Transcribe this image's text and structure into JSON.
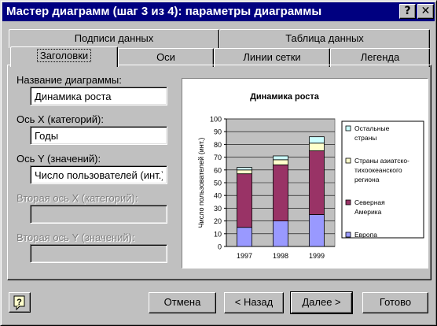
{
  "window": {
    "title": "Мастер диаграмм (шаг 3 из 4): параметры диаграммы",
    "help_glyph": "?",
    "close_glyph": "✕"
  },
  "tabs_back": [
    {
      "label": "Подписи данных"
    },
    {
      "label": "Таблица данных"
    }
  ],
  "tabs_front": [
    {
      "label": "Заголовки"
    },
    {
      "label": "Оси"
    },
    {
      "label": "Линии сетки"
    },
    {
      "label": "Легенда"
    }
  ],
  "form": {
    "chart_title_label": "Название диаграммы:",
    "chart_title_value": "Динамика роста",
    "x_axis_label": "Ось X (категорий):",
    "x_axis_value": "Годы",
    "y_axis_label": "Ось Y (значений):",
    "y_axis_value": "Число пользователей (инт.)",
    "x2_axis_label": "Вторая ось X (категорий):",
    "x2_axis_value": "",
    "y2_axis_label": "Вторая ось Y (значений):",
    "y2_axis_value": ""
  },
  "buttons": {
    "cancel": "Отмена",
    "back": "< Назад",
    "next": "Далее >",
    "finish": "Готово"
  },
  "chart_data": {
    "type": "bar",
    "stacked": true,
    "title": "Динамика роста",
    "xlabel": "Годы",
    "ylabel": "Число пользователей (инт.)",
    "categories": [
      "1997",
      "1998",
      "1999"
    ],
    "ylim": [
      0,
      100
    ],
    "yticks": [
      "0",
      "10",
      "20",
      "30",
      "40",
      "50",
      "60",
      "70",
      "80",
      "90",
      "100"
    ],
    "grid": true,
    "legend_position": "right",
    "series": [
      {
        "name": "Европа",
        "values": [
          15,
          20,
          25
        ],
        "color": "#9999ff"
      },
      {
        "name": "Северная Америка",
        "values": [
          42,
          44,
          50
        ],
        "color": "#993366"
      },
      {
        "name": "Страны азиатско-тихоокеанского региона",
        "values": [
          3,
          4,
          6
        ],
        "color": "#ffffcc"
      },
      {
        "name": "Остальные страны",
        "values": [
          2,
          3,
          5
        ],
        "color": "#ccffff"
      }
    ],
    "legend": [
      {
        "lines": [
          "Остальные",
          "страны"
        ]
      },
      {
        "lines": [
          "Страны азиатско-",
          "тихоокеанского",
          "региона"
        ]
      },
      {
        "lines": [
          "Северная",
          "Америка"
        ]
      },
      {
        "lines": [
          "Европа"
        ]
      }
    ]
  }
}
